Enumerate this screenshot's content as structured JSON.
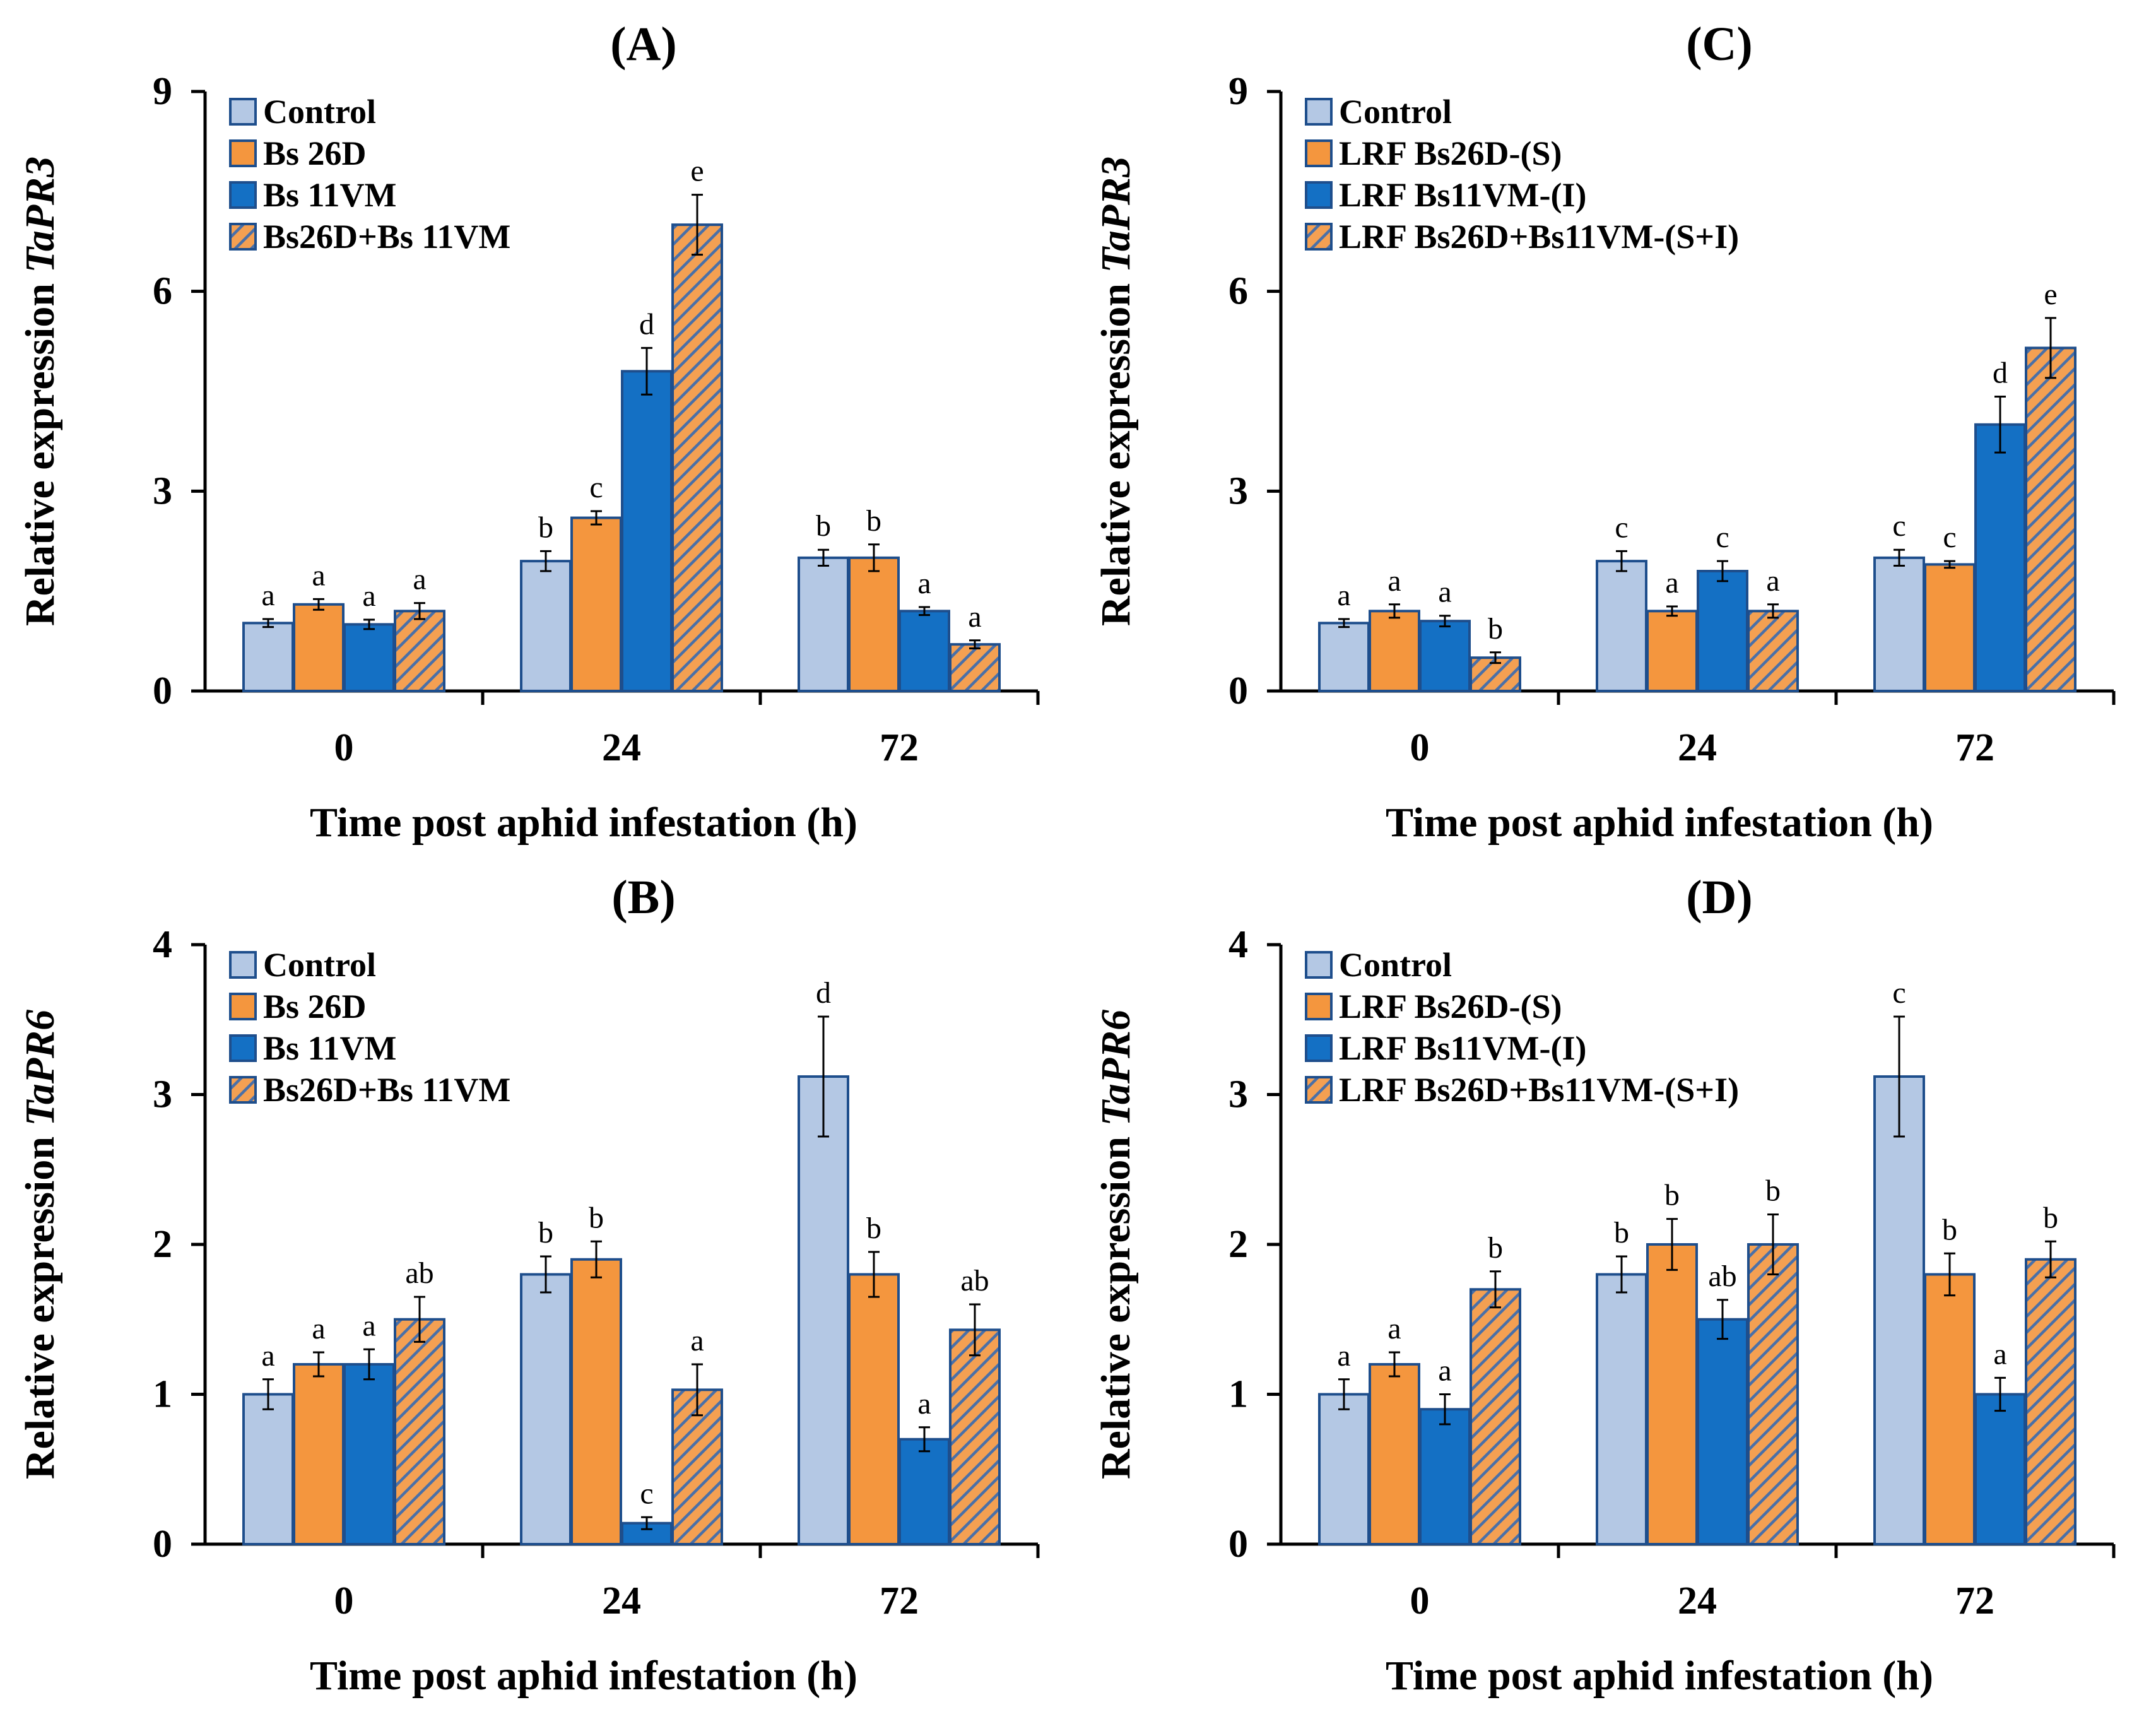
{
  "colors": {
    "control": "#b4c8e4",
    "bs26d": "#f4963e",
    "bs11vm": "#1470c4",
    "combo_base": "#f4a052",
    "combo_stripe": "#4a70a8",
    "outline": "#1e4e8c",
    "axis": "#000000"
  },
  "chart_data": [
    {
      "id": "A",
      "type": "bar",
      "title": "(A)",
      "xlabel": "Time post aphid infestation (h)",
      "ylabel_prefix": "Relative expression ",
      "ylabel_gene": "TaPR3",
      "ylim": [
        0,
        9
      ],
      "yticks": [
        "0",
        "3",
        "6",
        "9"
      ],
      "categories": [
        "0",
        "24",
        "72"
      ],
      "series": [
        {
          "name": "Control",
          "pattern": "control",
          "values": [
            1.02,
            1.95,
            2.0
          ],
          "errors": [
            0.06,
            0.15,
            0.12
          ],
          "letters": [
            "a",
            "b",
            "b"
          ]
        },
        {
          "name": "Bs 26D",
          "pattern": "bs26d",
          "values": [
            1.3,
            2.6,
            2.0
          ],
          "errors": [
            0.08,
            0.1,
            0.2
          ],
          "letters": [
            "a",
            "c",
            "b"
          ]
        },
        {
          "name": "Bs 11VM",
          "pattern": "bs11vm",
          "values": [
            1.0,
            4.8,
            1.2
          ],
          "errors": [
            0.07,
            0.35,
            0.06
          ],
          "letters": [
            "a",
            "d",
            "a"
          ]
        },
        {
          "name": "Bs26D+Bs 11VM",
          "pattern": "combo",
          "values": [
            1.2,
            7.0,
            0.7
          ],
          "errors": [
            0.12,
            0.45,
            0.06
          ],
          "letters": [
            "a",
            "e",
            "a"
          ]
        }
      ]
    },
    {
      "id": "C",
      "type": "bar",
      "title": "(C)",
      "xlabel": "Time post aphid infestation (h)",
      "ylabel_prefix": "Relative expression ",
      "ylabel_gene": "TaPR3",
      "ylim": [
        0,
        9
      ],
      "yticks": [
        "0",
        "3",
        "6",
        "9"
      ],
      "categories": [
        "0",
        "24",
        "72"
      ],
      "series": [
        {
          "name": "Control",
          "pattern": "control",
          "values": [
            1.02,
            1.95,
            2.0
          ],
          "errors": [
            0.06,
            0.15,
            0.12
          ],
          "letters": [
            "a",
            "c",
            "c"
          ]
        },
        {
          "name": "LRF Bs26D-(S)",
          "pattern": "bs26d",
          "values": [
            1.2,
            1.2,
            1.9
          ],
          "errors": [
            0.1,
            0.07,
            0.05
          ],
          "letters": [
            "a",
            "a",
            "c"
          ]
        },
        {
          "name": "LRF Bs11VM-(I)",
          "pattern": "bs11vm",
          "values": [
            1.05,
            1.8,
            4.0
          ],
          "errors": [
            0.08,
            0.15,
            0.42
          ],
          "letters": [
            "a",
            "c",
            "d"
          ]
        },
        {
          "name": "LRF Bs26D+Bs11VM-(S+I)",
          "pattern": "combo",
          "values": [
            0.5,
            1.2,
            5.15
          ],
          "errors": [
            0.08,
            0.1,
            0.45
          ],
          "letters": [
            "b",
            "a",
            "e"
          ]
        }
      ]
    },
    {
      "id": "B",
      "type": "bar",
      "title": "(B)",
      "xlabel": "Time post aphid infestation (h)",
      "ylabel_prefix": "Relative expression ",
      "ylabel_gene": "TaPR6",
      "ylim": [
        0,
        4
      ],
      "yticks": [
        "0",
        "1",
        "2",
        "3",
        "4"
      ],
      "categories": [
        "0",
        "24",
        "72"
      ],
      "series": [
        {
          "name": "Control",
          "pattern": "control",
          "values": [
            1.0,
            1.8,
            3.12
          ],
          "errors": [
            0.1,
            0.12,
            0.4
          ],
          "letters": [
            "a",
            "b",
            "d"
          ]
        },
        {
          "name": "Bs 26D",
          "pattern": "bs26d",
          "values": [
            1.2,
            1.9,
            1.8
          ],
          "errors": [
            0.08,
            0.12,
            0.15
          ],
          "letters": [
            "a",
            "b",
            "b"
          ]
        },
        {
          "name": "Bs 11VM",
          "pattern": "bs11vm",
          "values": [
            1.2,
            0.14,
            0.7
          ],
          "errors": [
            0.1,
            0.04,
            0.08
          ],
          "letters": [
            "a",
            "c",
            "a"
          ]
        },
        {
          "name": "Bs26D+Bs 11VM",
          "pattern": "combo",
          "values": [
            1.5,
            1.03,
            1.43
          ],
          "errors": [
            0.15,
            0.17,
            0.17
          ],
          "letters": [
            "ab",
            "a",
            "ab"
          ]
        }
      ]
    },
    {
      "id": "D",
      "type": "bar",
      "title": "(D)",
      "xlabel": "Time post aphid infestation (h)",
      "ylabel_prefix": "Relative expression ",
      "ylabel_gene": "TaPR6",
      "ylim": [
        0,
        4
      ],
      "yticks": [
        "0",
        "1",
        "2",
        "3",
        "4"
      ],
      "categories": [
        "0",
        "24",
        "72"
      ],
      "series": [
        {
          "name": "Control",
          "pattern": "control",
          "values": [
            1.0,
            1.8,
            3.12
          ],
          "errors": [
            0.1,
            0.12,
            0.4
          ],
          "letters": [
            "a",
            "b",
            "c"
          ]
        },
        {
          "name": "LRF Bs26D-(S)",
          "pattern": "bs26d",
          "values": [
            1.2,
            2.0,
            1.8
          ],
          "errors": [
            0.08,
            0.17,
            0.14
          ],
          "letters": [
            "a",
            "b",
            "b"
          ]
        },
        {
          "name": "LRF Bs11VM-(I)",
          "pattern": "bs11vm",
          "values": [
            0.9,
            1.5,
            1.0
          ],
          "errors": [
            0.1,
            0.13,
            0.11
          ],
          "letters": [
            "a",
            "ab",
            "a"
          ]
        },
        {
          "name": "LRF Bs26D+Bs11VM-(S+I)",
          "pattern": "combo",
          "values": [
            1.7,
            2.0,
            1.9
          ],
          "errors": [
            0.12,
            0.2,
            0.12
          ],
          "letters": [
            "b",
            "b",
            "b"
          ]
        }
      ]
    }
  ]
}
